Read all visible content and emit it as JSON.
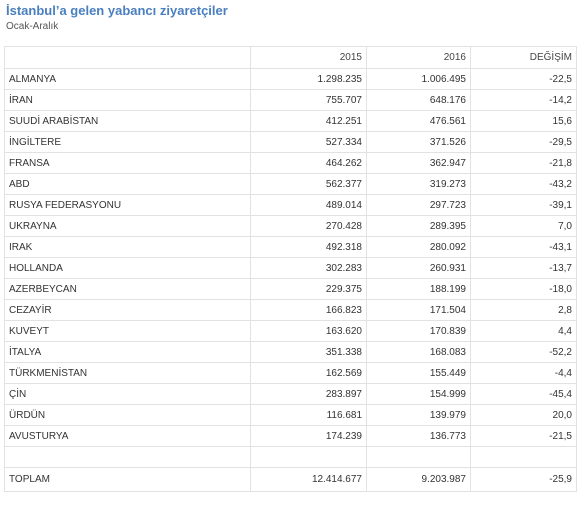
{
  "chart_data": {
    "type": "table",
    "title": "İstanbul’a gelen yabancı ziyaretçiler",
    "subtitle": "Ocak-Aralık",
    "columns": [
      "",
      "2015",
      "2016",
      "DEĞİŞİM"
    ],
    "rows": [
      {
        "country": "ALMANYA",
        "y2015": "1.298.235",
        "y2016": "1.006.495",
        "change": "-22,5"
      },
      {
        "country": "İRAN",
        "y2015": "755.707",
        "y2016": "648.176",
        "change": "-14,2"
      },
      {
        "country": "SUUDİ ARABİSTAN",
        "y2015": "412.251",
        "y2016": "476.561",
        "change": "15,6"
      },
      {
        "country": "İNGİLTERE",
        "y2015": "527.334",
        "y2016": "371.526",
        "change": "-29,5"
      },
      {
        "country": "FRANSA",
        "y2015": "464.262",
        "y2016": "362.947",
        "change": "-21,8"
      },
      {
        "country": "ABD",
        "y2015": "562.377",
        "y2016": "319.273",
        "change": "-43,2"
      },
      {
        "country": "RUSYA FEDERASYONU",
        "y2015": "489.014",
        "y2016": "297.723",
        "change": "-39,1"
      },
      {
        "country": "UKRAYNA",
        "y2015": "270.428",
        "y2016": "289.395",
        "change": "7,0"
      },
      {
        "country": "IRAK",
        "y2015": "492.318",
        "y2016": "280.092",
        "change": "-43,1"
      },
      {
        "country": "HOLLANDA",
        "y2015": "302.283",
        "y2016": "260.931",
        "change": "-13,7"
      },
      {
        "country": "AZERBEYCAN",
        "y2015": "229.375",
        "y2016": "188.199",
        "change": "-18,0"
      },
      {
        "country": "CEZAYİR",
        "y2015": "166.823",
        "y2016": "171.504",
        "change": "2,8"
      },
      {
        "country": "KUVEYT",
        "y2015": "163.620",
        "y2016": "170.839",
        "change": "4,4"
      },
      {
        "country": "İTALYA",
        "y2015": "351.338",
        "y2016": "168.083",
        "change": "-52,2"
      },
      {
        "country": "TÜRKMENİSTAN",
        "y2015": "162.569",
        "y2016": "155.449",
        "change": "-4,4"
      },
      {
        "country": "ÇİN",
        "y2015": "283.897",
        "y2016": "154.999",
        "change": "-45,4"
      },
      {
        "country": "ÜRDÜN",
        "y2015": "116.681",
        "y2016": "139.979",
        "change": "20,0"
      },
      {
        "country": "AVUSTURYA",
        "y2015": "174.239",
        "y2016": "136.773",
        "change": "-21,5"
      }
    ],
    "total": {
      "country": "TOPLAM",
      "y2015": "12.414.677",
      "y2016": "9.203.987",
      "change": "-25,9"
    },
    "colors": {
      "title": "#4a7fbf",
      "border": "#e2e2e2"
    }
  }
}
